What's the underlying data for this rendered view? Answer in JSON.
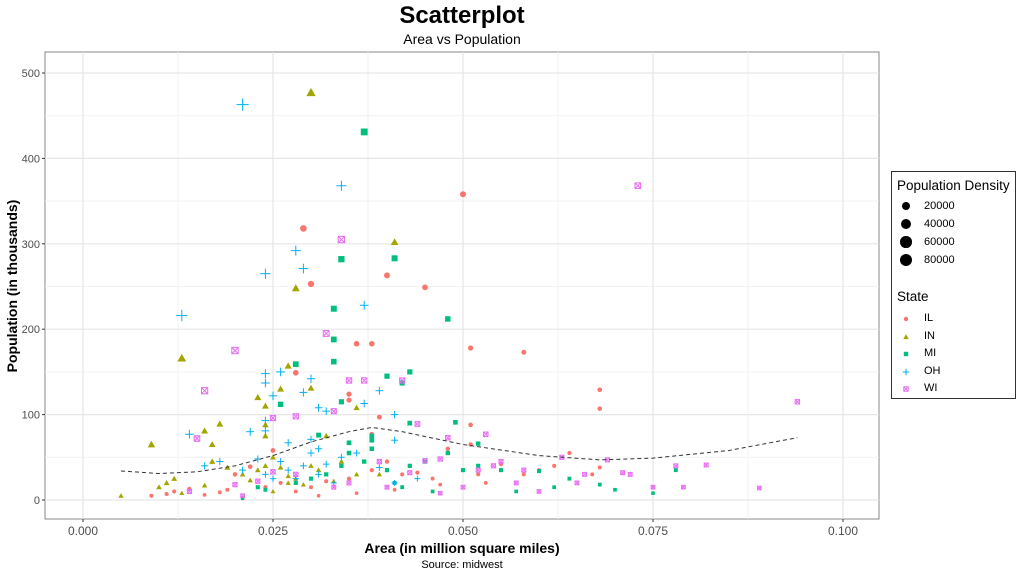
{
  "chart_data": {
    "type": "scatter",
    "title": "Scatterplot",
    "subtitle": "Area vs Population",
    "xlabel": "Area (in million square miles)",
    "ylabel": "Population (in thousands)",
    "caption": "Source: midwest",
    "xlim": [
      -0.0012,
      0.1045
    ],
    "ylim": [
      -20,
      525
    ],
    "xticks": [
      "0.000",
      "0.025",
      "0.050",
      "0.075",
      "0.100"
    ],
    "xtick_values": [
      0,
      0.025,
      0.05,
      0.075,
      0.1
    ],
    "yticks": [
      "0",
      "100",
      "200",
      "300",
      "400",
      "500"
    ],
    "ytick_values": [
      0,
      100,
      200,
      300,
      400,
      500
    ],
    "grid": true,
    "legend_position": "right",
    "size_legend": {
      "title": "Population Density",
      "values": [
        "20000",
        "40000",
        "60000",
        "80000"
      ]
    },
    "color_legend": {
      "title": "State"
    },
    "smooth": {
      "style": "dashed",
      "color": "#333333",
      "points": [
        [
          0.005,
          34
        ],
        [
          0.01,
          31
        ],
        [
          0.015,
          33
        ],
        [
          0.02,
          40
        ],
        [
          0.025,
          52
        ],
        [
          0.03,
          68
        ],
        [
          0.035,
          80
        ],
        [
          0.038,
          85
        ],
        [
          0.042,
          80
        ],
        [
          0.05,
          65
        ],
        [
          0.06,
          52
        ],
        [
          0.068,
          47
        ],
        [
          0.075,
          49
        ],
        [
          0.085,
          58
        ],
        [
          0.094,
          73
        ]
      ]
    },
    "series": [
      {
        "name": "IL",
        "color": "#F8766D",
        "shape": "circle",
        "points": [
          [
            0.05,
            358
          ],
          [
            0.029,
            318
          ],
          [
            0.04,
            263
          ],
          [
            0.03,
            253
          ],
          [
            0.045,
            249
          ],
          [
            0.036,
            183
          ],
          [
            0.038,
            183
          ],
          [
            0.051,
            178
          ],
          [
            0.058,
            173
          ],
          [
            0.028,
            149
          ],
          [
            0.068,
            129
          ],
          [
            0.035,
            124
          ],
          [
            0.035,
            117
          ],
          [
            0.068,
            107
          ],
          [
            0.039,
            97
          ],
          [
            0.051,
            88
          ],
          [
            0.038,
            77
          ],
          [
            0.051,
            65
          ],
          [
            0.009,
            5
          ],
          [
            0.011,
            7
          ],
          [
            0.012,
            10
          ],
          [
            0.014,
            13
          ],
          [
            0.016,
            6
          ],
          [
            0.018,
            9
          ],
          [
            0.019,
            12
          ],
          [
            0.02,
            30
          ],
          [
            0.022,
            39
          ],
          [
            0.024,
            15
          ],
          [
            0.025,
            58
          ],
          [
            0.026,
            20
          ],
          [
            0.028,
            10
          ],
          [
            0.03,
            15
          ],
          [
            0.032,
            22
          ],
          [
            0.035,
            25
          ],
          [
            0.038,
            35
          ],
          [
            0.04,
            45
          ],
          [
            0.042,
            30
          ],
          [
            0.044,
            32
          ],
          [
            0.046,
            25
          ],
          [
            0.048,
            60
          ],
          [
            0.05,
            35
          ],
          [
            0.052,
            30
          ],
          [
            0.055,
            42
          ],
          [
            0.058,
            30
          ],
          [
            0.06,
            35
          ],
          [
            0.062,
            40
          ],
          [
            0.067,
            30
          ],
          [
            0.068,
            38
          ],
          [
            0.053,
            20
          ],
          [
            0.041,
            12
          ],
          [
            0.036,
            8
          ],
          [
            0.031,
            5
          ],
          [
            0.047,
            18
          ],
          [
            0.064,
            55
          ]
        ]
      },
      {
        "name": "IN",
        "color": "#A3A500",
        "shape": "triangle",
        "points": [
          [
            0.03,
            477
          ],
          [
            0.041,
            302
          ],
          [
            0.028,
            248
          ],
          [
            0.013,
            166
          ],
          [
            0.027,
            157
          ],
          [
            0.026,
            130
          ],
          [
            0.03,
            131
          ],
          [
            0.023,
            120
          ],
          [
            0.024,
            110
          ],
          [
            0.036,
            108
          ],
          [
            0.018,
            89
          ],
          [
            0.024,
            88
          ],
          [
            0.016,
            81
          ],
          [
            0.032,
            75
          ],
          [
            0.024,
            75
          ],
          [
            0.009,
            65
          ],
          [
            0.017,
            65
          ],
          [
            0.005,
            5
          ],
          [
            0.01,
            15
          ],
          [
            0.011,
            20
          ],
          [
            0.012,
            25
          ],
          [
            0.013,
            8
          ],
          [
            0.016,
            17
          ],
          [
            0.017,
            45
          ],
          [
            0.019,
            38
          ],
          [
            0.021,
            30
          ],
          [
            0.022,
            23
          ],
          [
            0.023,
            35
          ],
          [
            0.024,
            40
          ],
          [
            0.025,
            10
          ],
          [
            0.026,
            38
          ],
          [
            0.027,
            28
          ],
          [
            0.028,
            25
          ],
          [
            0.029,
            18
          ],
          [
            0.03,
            40
          ],
          [
            0.031,
            35
          ],
          [
            0.033,
            22
          ],
          [
            0.034,
            45
          ],
          [
            0.036,
            30
          ],
          [
            0.039,
            30
          ],
          [
            0.025,
            50
          ],
          [
            0.027,
            20
          ]
        ]
      },
      {
        "name": "MI",
        "color": "#00BF7D",
        "shape": "square",
        "points": [
          [
            0.037,
            431
          ],
          [
            0.034,
            282
          ],
          [
            0.041,
            283
          ],
          [
            0.033,
            224
          ],
          [
            0.048,
            212
          ],
          [
            0.033,
            188
          ],
          [
            0.033,
            162
          ],
          [
            0.028,
            159
          ],
          [
            0.043,
            150
          ],
          [
            0.04,
            145
          ],
          [
            0.042,
            137
          ],
          [
            0.034,
            115
          ],
          [
            0.026,
            112
          ],
          [
            0.049,
            91
          ],
          [
            0.043,
            90
          ],
          [
            0.031,
            76
          ],
          [
            0.038,
            75
          ],
          [
            0.038,
            70
          ],
          [
            0.035,
            67
          ],
          [
            0.052,
            66
          ],
          [
            0.021,
            2
          ],
          [
            0.023,
            15
          ],
          [
            0.024,
            12
          ],
          [
            0.028,
            20
          ],
          [
            0.03,
            25
          ],
          [
            0.032,
            30
          ],
          [
            0.034,
            40
          ],
          [
            0.035,
            55
          ],
          [
            0.037,
            45
          ],
          [
            0.04,
            35
          ],
          [
            0.041,
            20
          ],
          [
            0.042,
            15
          ],
          [
            0.043,
            40
          ],
          [
            0.045,
            45
          ],
          [
            0.05,
            35
          ],
          [
            0.052,
            40
          ],
          [
            0.055,
            35
          ],
          [
            0.057,
            10
          ],
          [
            0.06,
            34
          ],
          [
            0.064,
            25
          ],
          [
            0.068,
            18
          ],
          [
            0.07,
            12
          ],
          [
            0.075,
            8
          ],
          [
            0.078,
            35
          ],
          [
            0.062,
            15
          ],
          [
            0.048,
            55
          ],
          [
            0.038,
            60
          ],
          [
            0.046,
            10
          ]
        ]
      },
      {
        "name": "OH",
        "color": "#00B0F6",
        "shape": "plus",
        "points": [
          [
            0.021,
            463
          ],
          [
            0.034,
            368
          ],
          [
            0.028,
            292
          ],
          [
            0.029,
            271
          ],
          [
            0.024,
            265
          ],
          [
            0.037,
            228
          ],
          [
            0.013,
            216
          ],
          [
            0.024,
            148
          ],
          [
            0.026,
            150
          ],
          [
            0.03,
            142
          ],
          [
            0.024,
            137
          ],
          [
            0.039,
            128
          ],
          [
            0.029,
            126
          ],
          [
            0.025,
            122
          ],
          [
            0.037,
            113
          ],
          [
            0.031,
            108
          ],
          [
            0.032,
            104
          ],
          [
            0.041,
            100
          ],
          [
            0.024,
            93
          ],
          [
            0.024,
            81
          ],
          [
            0.022,
            80
          ],
          [
            0.014,
            77
          ],
          [
            0.03,
            71
          ],
          [
            0.041,
            70
          ],
          [
            0.027,
            67
          ],
          [
            0.016,
            40
          ],
          [
            0.018,
            45
          ],
          [
            0.021,
            35
          ],
          [
            0.023,
            48
          ],
          [
            0.024,
            30
          ],
          [
            0.025,
            25
          ],
          [
            0.026,
            45
          ],
          [
            0.027,
            35
          ],
          [
            0.028,
            25
          ],
          [
            0.029,
            40
          ],
          [
            0.03,
            55
          ],
          [
            0.031,
            30
          ],
          [
            0.032,
            42
          ],
          [
            0.033,
            20
          ],
          [
            0.034,
            50
          ],
          [
            0.036,
            55
          ],
          [
            0.039,
            38
          ],
          [
            0.041,
            20
          ],
          [
            0.044,
            25
          ],
          [
            0.031,
            60
          ]
        ]
      },
      {
        "name": "WI",
        "color": "#E76BF3",
        "shape": "square-cross",
        "points": [
          [
            0.073,
            368
          ],
          [
            0.034,
            305
          ],
          [
            0.032,
            195
          ],
          [
            0.02,
            175
          ],
          [
            0.035,
            140
          ],
          [
            0.037,
            140
          ],
          [
            0.042,
            140
          ],
          [
            0.016,
            128
          ],
          [
            0.094,
            115
          ],
          [
            0.033,
            104
          ],
          [
            0.025,
            96
          ],
          [
            0.028,
            98
          ],
          [
            0.044,
            89
          ],
          [
            0.053,
            77
          ],
          [
            0.015,
            72
          ],
          [
            0.048,
            73
          ],
          [
            0.014,
            10
          ],
          [
            0.02,
            18
          ],
          [
            0.021,
            5
          ],
          [
            0.023,
            22
          ],
          [
            0.025,
            33
          ],
          [
            0.028,
            30
          ],
          [
            0.033,
            15
          ],
          [
            0.035,
            20
          ],
          [
            0.04,
            15
          ],
          [
            0.043,
            32
          ],
          [
            0.045,
            46
          ],
          [
            0.047,
            48
          ],
          [
            0.047,
            8
          ],
          [
            0.05,
            15
          ],
          [
            0.052,
            35
          ],
          [
            0.054,
            40
          ],
          [
            0.055,
            45
          ],
          [
            0.057,
            20
          ],
          [
            0.058,
            35
          ],
          [
            0.06,
            10
          ],
          [
            0.063,
            50
          ],
          [
            0.065,
            20
          ],
          [
            0.066,
            30
          ],
          [
            0.069,
            47
          ],
          [
            0.071,
            32
          ],
          [
            0.072,
            30
          ],
          [
            0.075,
            15
          ],
          [
            0.078,
            40
          ],
          [
            0.079,
            15
          ],
          [
            0.082,
            41
          ],
          [
            0.089,
            14
          ],
          [
            0.039,
            45
          ]
        ]
      }
    ]
  }
}
